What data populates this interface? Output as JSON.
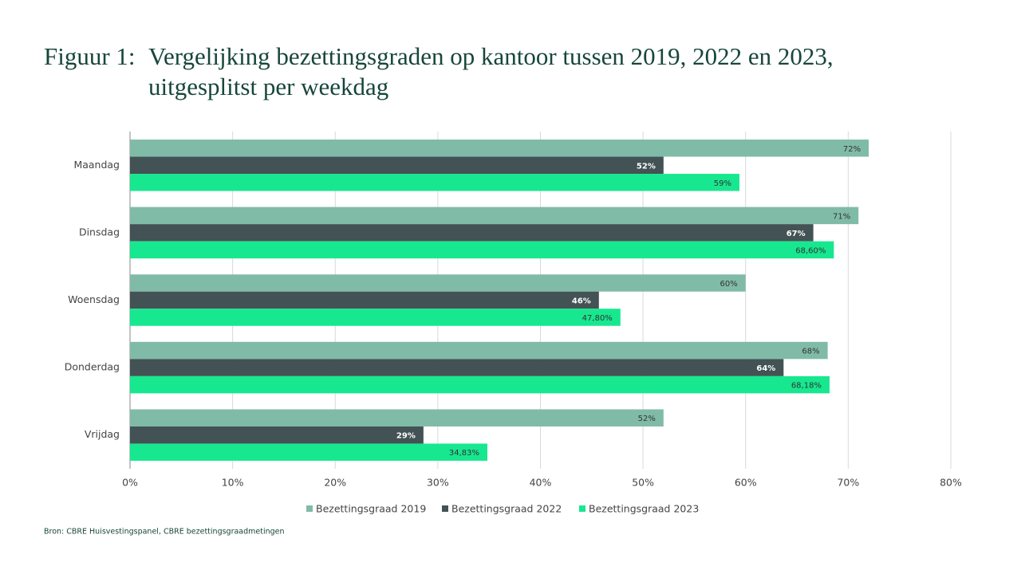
{
  "chart_data": {
    "type": "hbar",
    "figure_label": "Figuur 1:",
    "title": "Vergelijking bezettingsgraden op kantoor tussen 2019, 2022 en 2023, uitgesplitst per weekdag",
    "categories": [
      "Maandag",
      "Dinsdag",
      "Woensdag",
      "Donderdag",
      "Vrijdag"
    ],
    "series": [
      {
        "name": "Bezettingsgraad 2019",
        "color": "#80bba8",
        "values": [
          72,
          71,
          60,
          68,
          52
        ],
        "value_labels": [
          "72%",
          "71%",
          "60%",
          "68%",
          "52%"
        ]
      },
      {
        "name": "Bezettingsgraad 2022",
        "color": "#435254",
        "values": [
          52,
          66.6,
          45.7,
          63.7,
          28.6
        ],
        "value_labels": [
          "52%",
          "67%",
          "46%",
          "64%",
          "29%"
        ]
      },
      {
        "name": "Bezettingsgraad 2023",
        "color": "#17e88f",
        "values": [
          59.4,
          68.6,
          47.8,
          68.18,
          34.83
        ],
        "value_labels": [
          "59%",
          "68,60%",
          "47,80%",
          "68,18%",
          "34,83%"
        ]
      }
    ],
    "xlim": [
      0,
      80
    ],
    "xticks": [
      {
        "value": 0,
        "label": "0%"
      },
      {
        "value": 10,
        "label": "10%"
      },
      {
        "value": 20,
        "label": "20%"
      },
      {
        "value": 30,
        "label": "30%"
      },
      {
        "value": 40,
        "label": "40%"
      },
      {
        "value": 50,
        "label": "50%"
      },
      {
        "value": 60,
        "label": "60%"
      },
      {
        "value": 70,
        "label": "70%"
      },
      {
        "value": 80,
        "label": "80%"
      }
    ],
    "grid": true,
    "legend": "bottom",
    "source": "Bron: CBRE Huisvestingspanel, CBRE bezettingsgraadmetingen"
  }
}
